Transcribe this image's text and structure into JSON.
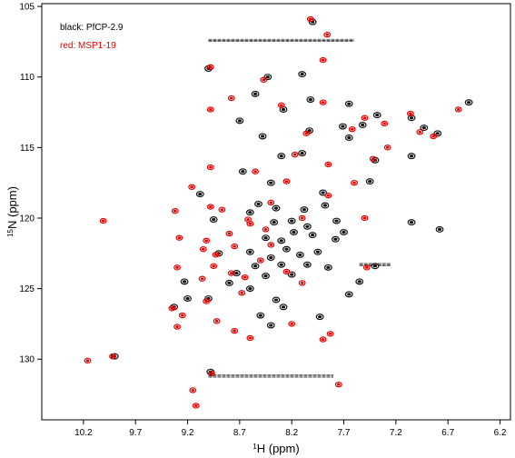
{
  "chart_data": {
    "type": "scatter",
    "subtype": "2D NMR contour overlay (1H-15N HSQC)",
    "x_axis": {
      "label_sup": "1",
      "label_main": "H (ppm)",
      "range": [
        10.6,
        6.1
      ],
      "reversed": true,
      "ticks": [
        10.2,
        9.7,
        9.2,
        8.7,
        8.2,
        7.7,
        7.2,
        6.7,
        6.2
      ],
      "tick_labels": [
        "10.2",
        "9.7",
        "9.2",
        "8.7",
        "8.2",
        "7.7",
        "7.2",
        "6.7",
        "6.2"
      ]
    },
    "y_axis": {
      "label_sup": "15",
      "label_main": "N (ppm)",
      "range": [
        104.8,
        134.3
      ],
      "reversed": true,
      "ticks": [
        105,
        110,
        115,
        120,
        125,
        130
      ],
      "tick_labels": [
        "105",
        "110",
        "115",
        "120",
        "125",
        "130"
      ]
    },
    "legend": [
      {
        "text": "black: PfCP-2.9",
        "color": "#000000"
      },
      {
        "text": "red: MSP1-19",
        "color": "#e00000"
      }
    ],
    "colors": {
      "black": "#111111",
      "red": "#e00000"
    },
    "grid": false,
    "series": [
      {
        "color_key": "black",
        "peaks": [
          [
            8.0,
            106.1
          ],
          [
            9.0,
            109.4
          ],
          [
            8.43,
            110.0
          ],
          [
            8.1,
            109.8
          ],
          [
            8.55,
            111.2
          ],
          [
            8.28,
            112.3
          ],
          [
            8.02,
            111.6
          ],
          [
            7.65,
            111.9
          ],
          [
            8.7,
            113.1
          ],
          [
            8.03,
            113.8
          ],
          [
            8.48,
            114.2
          ],
          [
            7.65,
            114.3
          ],
          [
            7.71,
            113.5
          ],
          [
            7.52,
            113.4
          ],
          [
            7.38,
            112.7
          ],
          [
            7.05,
            112.9
          ],
          [
            6.93,
            113.6
          ],
          [
            6.8,
            114.0
          ],
          [
            7.05,
            115.6
          ],
          [
            8.1,
            115.4
          ],
          [
            8.3,
            115.6
          ],
          [
            7.4,
            115.9
          ],
          [
            8.67,
            116.7
          ],
          [
            8.4,
            117.5
          ],
          [
            7.9,
            118.2
          ],
          [
            9.08,
            118.3
          ],
          [
            8.52,
            119.0
          ],
          [
            8.08,
            119.4
          ],
          [
            7.88,
            119.1
          ],
          [
            8.6,
            119.6
          ],
          [
            8.2,
            120.2
          ],
          [
            8.37,
            120.3
          ],
          [
            8.05,
            120.6
          ],
          [
            7.77,
            120.2
          ],
          [
            8.18,
            121.0
          ],
          [
            8.45,
            121.4
          ],
          [
            8.3,
            121.6
          ],
          [
            8.0,
            121.2
          ],
          [
            7.78,
            121.5
          ],
          [
            8.25,
            122.2
          ],
          [
            8.12,
            122.6
          ],
          [
            7.95,
            122.4
          ],
          [
            8.4,
            122.8
          ],
          [
            8.3,
            123.3
          ],
          [
            8.55,
            123.4
          ],
          [
            8.05,
            123.3
          ],
          [
            8.73,
            123.9
          ],
          [
            7.85,
            123.5
          ],
          [
            8.45,
            124.1
          ],
          [
            8.2,
            124.0
          ],
          [
            8.6,
            125.0
          ],
          [
            8.35,
            125.8
          ],
          [
            7.65,
            125.4
          ],
          [
            8.28,
            126.3
          ],
          [
            8.5,
            126.9
          ],
          [
            8.4,
            127.6
          ],
          [
            7.93,
            127.0
          ],
          [
            8.8,
            124.6
          ],
          [
            9.23,
            124.5
          ],
          [
            9.0,
            125.7
          ],
          [
            9.33,
            126.3
          ],
          [
            9.9,
            129.8
          ],
          [
            9.2,
            125.7
          ],
          [
            8.98,
            130.9
          ],
          [
            7.55,
            124.5
          ],
          [
            6.78,
            120.8
          ],
          [
            7.05,
            120.3
          ],
          [
            8.6,
            122.4
          ],
          [
            8.9,
            122.5
          ],
          [
            7.4,
            123.4
          ],
          [
            6.5,
            111.8
          ],
          [
            7.45,
            117.4
          ],
          [
            8.95,
            120.1
          ],
          [
            8.35,
            119.3
          ],
          [
            7.7,
            121.0
          ]
        ]
      },
      {
        "color_key": "red",
        "peaks": [
          [
            8.02,
            105.9
          ],
          [
            7.86,
            107.0
          ],
          [
            7.9,
            108.8
          ],
          [
            8.98,
            109.3
          ],
          [
            8.47,
            110.2
          ],
          [
            8.78,
            111.5
          ],
          [
            8.3,
            112.0
          ],
          [
            7.9,
            111.8
          ],
          [
            8.98,
            112.3
          ],
          [
            8.06,
            114.0
          ],
          [
            7.62,
            113.7
          ],
          [
            7.5,
            112.9
          ],
          [
            7.31,
            113.3
          ],
          [
            7.06,
            112.6
          ],
          [
            6.97,
            113.9
          ],
          [
            6.84,
            114.2
          ],
          [
            6.6,
            112.3
          ],
          [
            7.28,
            115.0
          ],
          [
            7.42,
            115.8
          ],
          [
            8.17,
            115.5
          ],
          [
            7.85,
            116.2
          ],
          [
            8.98,
            116.4
          ],
          [
            7.6,
            117.5
          ],
          [
            9.16,
            117.8
          ],
          [
            7.85,
            118.4
          ],
          [
            8.98,
            119.2
          ],
          [
            9.32,
            119.5
          ],
          [
            8.87,
            119.4
          ],
          [
            10.01,
            120.2
          ],
          [
            8.62,
            120.1
          ],
          [
            8.8,
            121.1
          ],
          [
            9.02,
            121.6
          ],
          [
            9.28,
            121.4
          ],
          [
            7.5,
            120.0
          ],
          [
            9.05,
            122.2
          ],
          [
            8.93,
            122.6
          ],
          [
            9.3,
            123.5
          ],
          [
            8.95,
            123.4
          ],
          [
            8.78,
            123.9
          ],
          [
            9.06,
            124.3
          ],
          [
            8.65,
            124.2
          ],
          [
            8.25,
            123.8
          ],
          [
            8.1,
            124.6
          ],
          [
            7.48,
            123.5
          ],
          [
            8.68,
            125.3
          ],
          [
            9.02,
            125.9
          ],
          [
            9.35,
            126.4
          ],
          [
            9.25,
            126.9
          ],
          [
            9.3,
            127.7
          ],
          [
            8.92,
            127.3
          ],
          [
            8.75,
            128.0
          ],
          [
            8.2,
            127.5
          ],
          [
            7.83,
            128.2
          ],
          [
            7.9,
            128.6
          ],
          [
            8.6,
            128.5
          ],
          [
            9.92,
            129.8
          ],
          [
            8.97,
            131.0
          ],
          [
            10.16,
            130.1
          ],
          [
            9.15,
            132.2
          ],
          [
            9.12,
            133.3
          ],
          [
            7.75,
            131.8
          ],
          [
            8.75,
            122.0
          ],
          [
            8.45,
            120.8
          ],
          [
            8.6,
            120.4
          ],
          [
            8.1,
            120.0
          ],
          [
            8.4,
            118.9
          ],
          [
            8.55,
            116.7
          ],
          [
            8.25,
            117.4
          ],
          [
            8.4,
            121.9
          ],
          [
            8.5,
            123.0
          ]
        ]
      }
    ],
    "horizontal_streaks": [
      {
        "n": 107.4,
        "h_from": 9.0,
        "h_to": 7.6,
        "color_key": "black"
      },
      {
        "n": 131.2,
        "h_from": 9.0,
        "h_to": 7.8,
        "color_key": "black"
      },
      {
        "n": 123.3,
        "h_from": 7.55,
        "h_to": 7.25,
        "color_key": "black"
      }
    ]
  }
}
